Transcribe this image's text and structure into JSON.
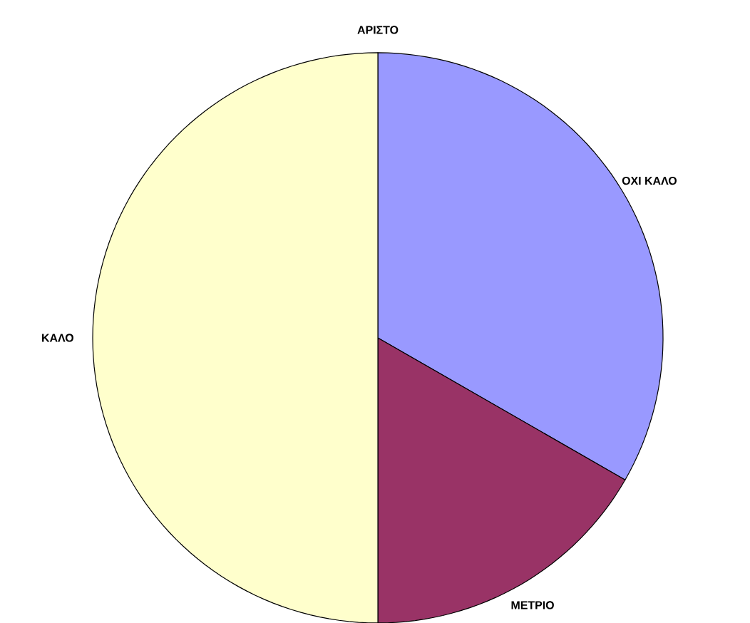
{
  "chart_data": {
    "type": "pie",
    "categories": [
      "ΑΡΙΣΤΟ",
      "ΟΧΙ ΚΑΛΟ",
      "ΜΕΤΡΙΟ",
      "ΚΑΛΟ"
    ],
    "values": [
      0,
      33.3,
      16.7,
      50
    ],
    "colors": [
      "#ccffff",
      "#9999ff",
      "#993366",
      "#ffffcc"
    ]
  }
}
